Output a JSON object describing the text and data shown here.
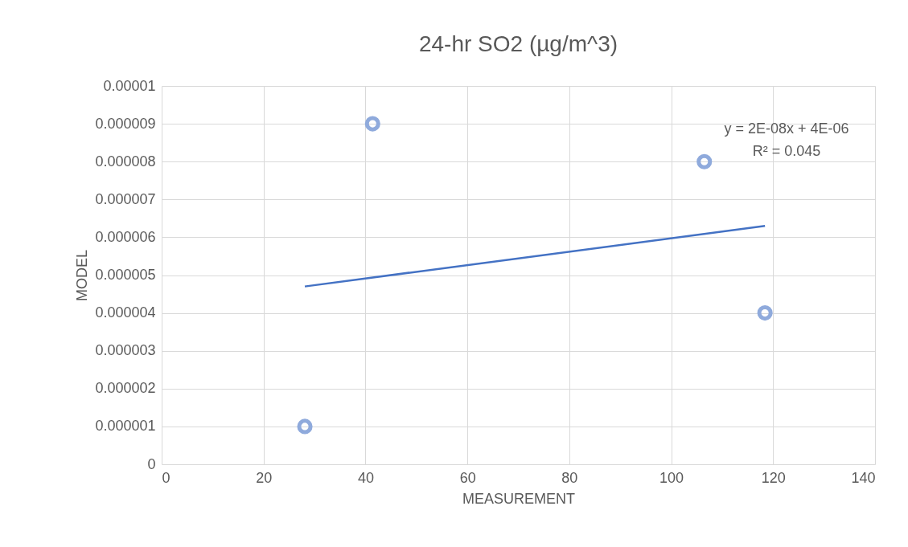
{
  "chart_data": {
    "type": "scatter",
    "title": "24-hr SO2 (µg/m^3)",
    "xlabel": "MEASUREMENT",
    "ylabel": "MODEL",
    "x": [
      28.1,
      41.4,
      106.5,
      118.4
    ],
    "series": [
      {
        "type": "scatter",
        "color": "#8faadc",
        "values": [
          1e-06,
          9e-06,
          8e-06,
          4e-06
        ]
      },
      {
        "type": "line",
        "color": "#4472c4",
        "marker": "none",
        "x": [
          28.1,
          118.4
        ],
        "values": [
          4.7e-06,
          6.3e-06
        ]
      }
    ],
    "annotations": [
      "y = 2E-08x + 4E-06",
      "R² = 0.045"
    ],
    "xlim": [
      0,
      140
    ],
    "xticks": [
      0,
      20,
      40,
      60,
      80,
      100,
      120,
      140
    ],
    "ylim": [
      0,
      1e-05
    ],
    "yticks": [
      0,
      {
        "value": 1e-06,
        "label": "0.000001"
      },
      {
        "value": 2e-06,
        "label": "0.000002"
      },
      {
        "value": 3e-06,
        "label": "0.000003"
      },
      {
        "value": 4e-06,
        "label": "0.000004"
      },
      {
        "value": 5e-06,
        "label": "0.000005"
      },
      {
        "value": 6e-06,
        "label": "0.000006"
      },
      {
        "value": 7e-06,
        "label": "0.000007"
      },
      {
        "value": 8e-06,
        "label": "0.000008"
      },
      {
        "value": 9e-06,
        "label": "0.000009"
      },
      {
        "value": 1e-05,
        "label": "0.00001"
      }
    ],
    "grid": true,
    "marker": "circle"
  }
}
